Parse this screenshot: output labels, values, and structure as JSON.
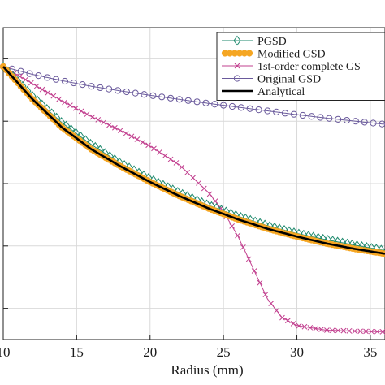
{
  "chart_data": {
    "type": "line",
    "xlabel": "Radius (mm)",
    "ylabel": "",
    "title": "",
    "xlim": [
      10,
      36
    ],
    "ylim": [
      0,
      1.0
    ],
    "x_ticks": [
      10,
      15,
      20,
      25,
      30,
      35
    ],
    "x_tick_labels": [
      "10",
      "15",
      "20",
      "25",
      "30",
      "35"
    ],
    "y_ticks": [
      0.1,
      0.3,
      0.5,
      0.7,
      0.9
    ],
    "grid": true,
    "legend_position": "top-right",
    "series": [
      {
        "name": "PGSD",
        "color": "#1f8a6e",
        "marker": "diamond",
        "x": [
          10,
          12,
          14,
          16,
          18,
          20,
          22,
          24,
          26,
          28,
          30,
          32,
          34,
          36
        ],
        "y": [
          0.875,
          0.78,
          0.695,
          0.625,
          0.565,
          0.515,
          0.47,
          0.43,
          0.395,
          0.365,
          0.34,
          0.32,
          0.302,
          0.285
        ]
      },
      {
        "name": "Modified GSD",
        "color": "#f5a623",
        "marker": "circle-filled",
        "x": [
          10,
          12,
          14,
          16,
          18,
          20,
          22,
          24,
          26,
          28,
          30,
          32,
          34,
          36
        ],
        "y": [
          0.875,
          0.77,
          0.68,
          0.61,
          0.555,
          0.505,
          0.46,
          0.42,
          0.385,
          0.355,
          0.33,
          0.308,
          0.29,
          0.275
        ]
      },
      {
        "name": "1st-order complete GS",
        "color": "#c2408f",
        "marker": "x",
        "x": [
          10,
          12,
          14,
          16,
          18,
          20,
          22,
          24,
          25,
          26,
          27,
          28,
          29,
          30,
          32,
          34,
          36
        ],
        "y": [
          0.875,
          0.82,
          0.765,
          0.715,
          0.67,
          0.62,
          0.56,
          0.47,
          0.41,
          0.33,
          0.23,
          0.13,
          0.07,
          0.045,
          0.03,
          0.027,
          0.025
        ]
      },
      {
        "name": "Original GSD",
        "color": "#6a5a9c",
        "marker": "circle-open",
        "x": [
          10,
          12,
          14,
          16,
          18,
          20,
          22,
          24,
          26,
          28,
          30,
          32,
          34,
          36
        ],
        "y": [
          0.875,
          0.85,
          0.83,
          0.812,
          0.797,
          0.783,
          0.77,
          0.757,
          0.745,
          0.733,
          0.721,
          0.71,
          0.7,
          0.69
        ]
      },
      {
        "name": "Analytical",
        "color": "#000000",
        "marker": "none",
        "x": [
          10,
          12,
          14,
          16,
          18,
          20,
          22,
          24,
          26,
          28,
          30,
          32,
          34,
          36
        ],
        "y": [
          0.875,
          0.77,
          0.68,
          0.61,
          0.555,
          0.505,
          0.46,
          0.42,
          0.385,
          0.355,
          0.33,
          0.308,
          0.29,
          0.275
        ]
      }
    ]
  }
}
